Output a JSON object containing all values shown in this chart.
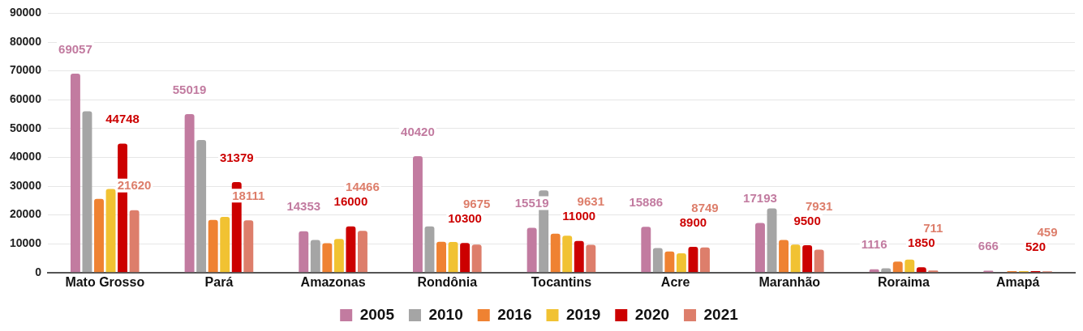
{
  "chart_data": {
    "type": "bar",
    "categories": [
      "Mato Grosso",
      "Pará",
      "Amazonas",
      "Rondônia",
      "Tocantins",
      "Acre",
      "Maranhão",
      "Roraima",
      "Amapá"
    ],
    "series": [
      {
        "name": "2005",
        "color": "#c27ba0",
        "values": [
          69057,
          55019,
          14353,
          40420,
          15519,
          15886,
          17193,
          1116,
          666
        ],
        "value_labels": [
          "69057",
          "55019",
          "14353",
          "40420",
          "15519",
          "15886",
          "17193",
          "1116",
          "666"
        ]
      },
      {
        "name": "2010",
        "color": "#a5a5a5",
        "values": [
          56000,
          46000,
          11300,
          16000,
          28500,
          8500,
          22300,
          1500,
          null
        ]
      },
      {
        "name": "2016",
        "color": "#ef8232",
        "values": [
          25600,
          18300,
          10200,
          10700,
          13500,
          7300,
          11300,
          3800,
          500
        ]
      },
      {
        "name": "2019",
        "color": "#f1c232",
        "values": [
          29000,
          19300,
          11700,
          10600,
          12800,
          6700,
          9700,
          4500,
          500
        ]
      },
      {
        "name": "2020",
        "color": "#cc0000",
        "values": [
          44748,
          31379,
          16000,
          10300,
          11000,
          8900,
          9500,
          1850,
          520
        ],
        "value_labels": [
          "44748",
          "31379",
          "16000",
          "10300",
          "11000",
          "8900",
          "9500",
          "1850",
          "520"
        ]
      },
      {
        "name": "2021",
        "color": "#dd7e6b",
        "values": [
          21620,
          18111,
          14466,
          9675,
          9631,
          8749,
          7931,
          711,
          459
        ],
        "value_labels": [
          "21620",
          "18111",
          "14466",
          "9675",
          "9631",
          "8749",
          "7931",
          "711",
          "459"
        ]
      }
    ],
    "ylim": [
      0,
      90000
    ],
    "yticks": [
      0,
      10000,
      20000,
      30000,
      40000,
      50000,
      60000,
      70000,
      80000,
      90000
    ],
    "grid": "y",
    "legend": "bottom"
  }
}
